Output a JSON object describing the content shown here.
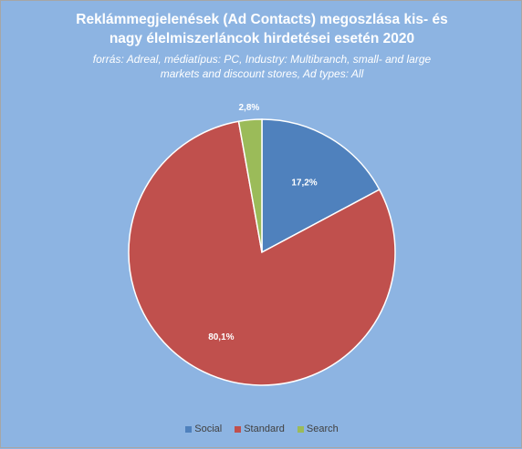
{
  "chart_data": {
    "type": "pie",
    "title_lines": [
      "Reklámmegjelenések (Ad Contacts) megoszlása kis- és",
      "nagy élelmiszerláncok hirdetései esetén 2020"
    ],
    "subtitle_lines": [
      "forrás: Adreal, médiatípus: PC, Industry: Multibranch, small- and large",
      "markets and discount stores, Ad types: All"
    ],
    "categories": [
      "Social",
      "Standard",
      "Search"
    ],
    "values": [
      17.2,
      80.1,
      2.8
    ],
    "data_labels": [
      "17,2%",
      "80,1%",
      "2,8%"
    ],
    "colors": [
      "#4f81bd",
      "#c0504d",
      "#9bbb59"
    ],
    "legend_position": "bottom"
  }
}
